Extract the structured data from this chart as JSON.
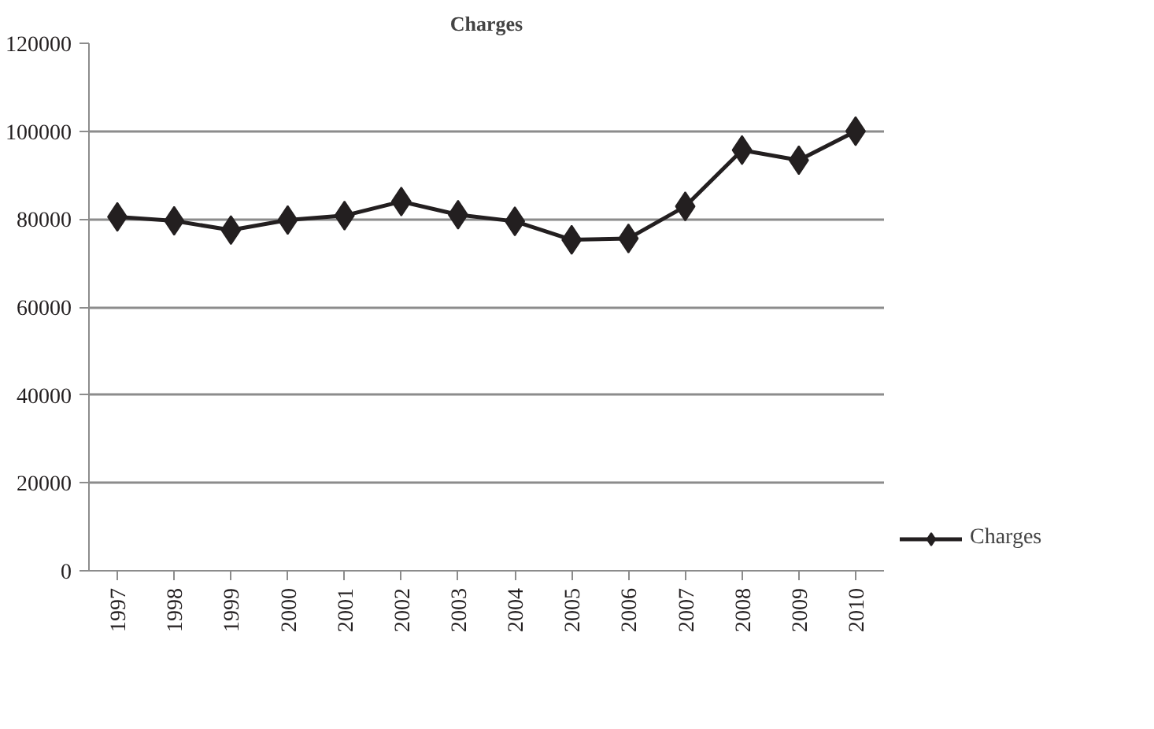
{
  "chart_data": {
    "type": "line",
    "title": "Charges",
    "categories": [
      "1997",
      "1998",
      "1999",
      "2000",
      "2001",
      "2002",
      "2003",
      "2004",
      "2005",
      "2006",
      "2007",
      "2008",
      "2009",
      "2010"
    ],
    "series": [
      {
        "name": "Charges",
        "color": "#231f20",
        "values": [
          80500,
          79600,
          77500,
          79800,
          80800,
          84000,
          81000,
          79500,
          75300,
          75600,
          82900,
          95700,
          93400,
          100000
        ]
      }
    ],
    "ylim": [
      0,
      120000
    ],
    "yticks": [
      0,
      20000,
      40000,
      60000,
      80000,
      100000,
      120000
    ],
    "grid": "y",
    "legend": "right",
    "marker": "diamond",
    "line_style": "solid"
  }
}
